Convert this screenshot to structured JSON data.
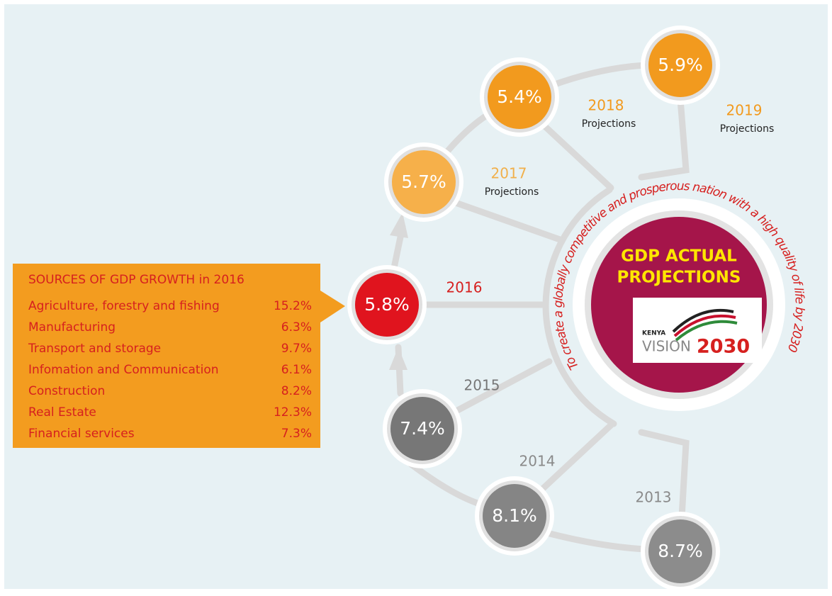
{
  "sources": {
    "title": "SOURCES OF GDP GROWTH in 2016",
    "rows": [
      [
        "Agriculture, forestry and fishing",
        "15.2%"
      ],
      [
        "Manufacturing",
        "6.3%"
      ],
      [
        "Transport and storage",
        "9.7%"
      ],
      [
        "Infomation and Communication",
        "6.1%"
      ],
      [
        "Construction",
        "8.2%"
      ],
      [
        "Real Estate",
        "12.3%"
      ],
      [
        "Financial services",
        "7.3%"
      ]
    ]
  },
  "nodes": [
    {
      "value": "8.7%",
      "year": "2013"
    },
    {
      "value": "8.1%",
      "year": "2014"
    },
    {
      "value": "7.4%",
      "year": "2015"
    },
    {
      "value": "5.8%",
      "year": "2016"
    },
    {
      "value": "5.7%",
      "year": "2017",
      "note": "Projections"
    },
    {
      "value": "5.4%",
      "year": "2018",
      "note": "Projections"
    },
    {
      "value": "5.9%",
      "year": "2019",
      "note": "Projections"
    }
  ],
  "center": {
    "title": [
      "GDP ACTUAL",
      "PROJECTIONS"
    ],
    "logo": {
      "small": "KENYA",
      "word": "VISION",
      "year": "2030"
    },
    "motto": "To create a globally competitive and prosperous nation with a high quality of life by 2030"
  }
}
